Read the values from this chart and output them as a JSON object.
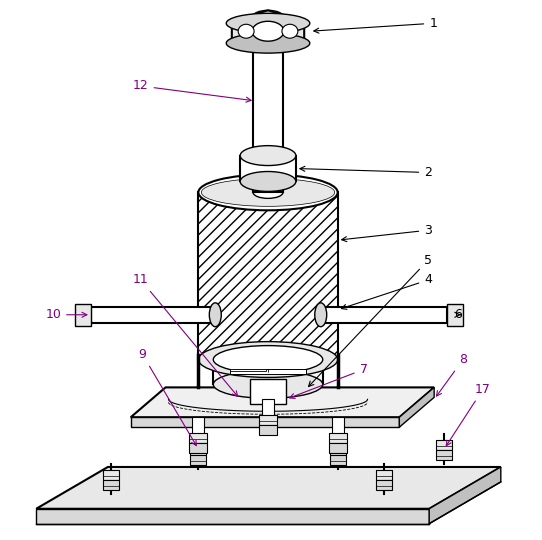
{
  "bg_color": "#ffffff",
  "line_color": "#000000",
  "fig_width": 5.42,
  "fig_height": 5.4,
  "dpi": 100,
  "purple": "#800080",
  "black": "#000000",
  "gray_light": "#e8e8e8",
  "gray_mid": "#d8d8d8",
  "gray_dark": "#c0c0c0"
}
